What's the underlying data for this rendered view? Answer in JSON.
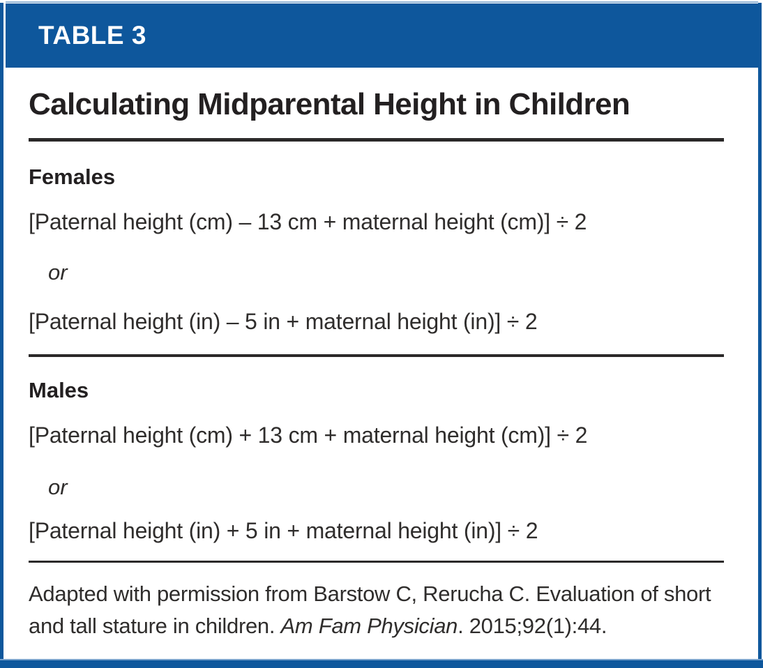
{
  "table": {
    "label": "TABLE 3",
    "title": "Calculating Midparental Height in Children",
    "sections": [
      {
        "heading": "Females",
        "formula_cm": "[Paternal height (cm) – 13 cm + maternal height (cm)] ÷ 2",
        "or_label": "or",
        "formula_in": "[Paternal height (in) – 5 in + maternal height (in)] ÷ 2"
      },
      {
        "heading": "Males",
        "formula_cm": "[Paternal height (cm) + 13 cm + maternal height (cm)] ÷ 2",
        "or_label": "or",
        "formula_in": "[Paternal height (in) + 5 in + maternal height (in)] ÷ 2"
      }
    ],
    "citation": {
      "prefix": "Adapted with permission from Barstow C, Rerucha C. Evaluation of short and tall stature in children. ",
      "journal": "Am Fam Physician",
      "suffix": ". 2015;92(1):44."
    }
  },
  "colors": {
    "accent_blue": "#0e579c",
    "text_dark": "#232021"
  }
}
